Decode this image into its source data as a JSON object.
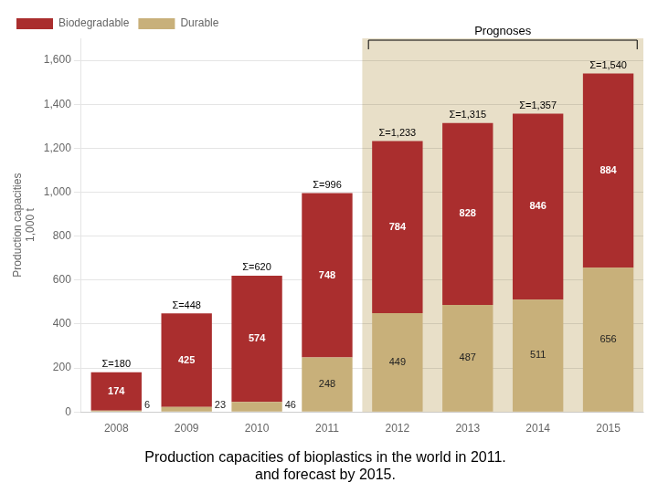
{
  "chart_data": {
    "type": "bar",
    "stacked": true,
    "title": "Production capacities of bioplastics in the world in 2011.",
    "subtitle": "and forecast by 2015.",
    "ylabel": "Production capacities",
    "categories": [
      "2008",
      "2009",
      "2010",
      "2011",
      "2012",
      "2013",
      "2014",
      "2015"
    ],
    "series": [
      {
        "name": "Durable",
        "color": "#c8b07a",
        "values": [
          6,
          23,
          46,
          248,
          449,
          487,
          511,
          656
        ]
      },
      {
        "name": "Biodegradable",
        "color": "#aa2e2e",
        "values": [
          174,
          425,
          574,
          748,
          784,
          828,
          846,
          884
        ]
      }
    ],
    "totals": {
      "values": [
        180,
        448,
        620,
        996,
        1233,
        1315,
        1357,
        1540
      ],
      "value_labels": [
        "Σ=180",
        "Σ=448",
        "Σ=620",
        "Σ=996",
        "Σ=1,233",
        "Σ=1,315",
        "Σ=1,357",
        "Σ=1,540"
      ]
    },
    "ylim": [
      0,
      1700
    ],
    "yticks": [
      0,
      200,
      400,
      600,
      800,
      {
        "value": 1000,
        "label": "1,000"
      },
      {
        "value": 1200,
        "label": "1,200"
      },
      {
        "value": 1400,
        "label": "1,400"
      },
      {
        "value": 1600,
        "label": "1,600"
      }
    ],
    "grid": "y",
    "legend": "upper left",
    "data_labels": true,
    "annotations": [
      {
        "text": "1,000 t"
      },
      {
        "text": "Prognoses",
        "categories": [
          "2012",
          "2015"
        ],
        "color": "#e8dfc8"
      }
    ]
  }
}
